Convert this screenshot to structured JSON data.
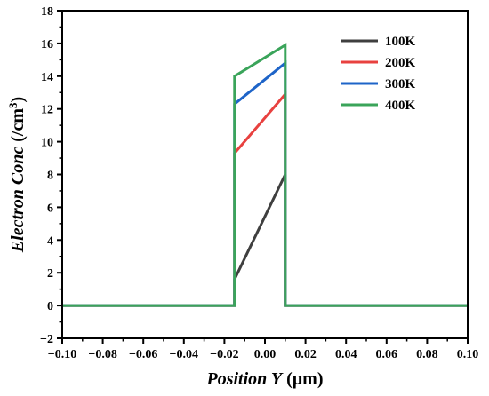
{
  "chart_data": {
    "type": "line",
    "xlabel": {
      "prefix": "Position ",
      "italic_var": "Y",
      "unit": " (μm)"
    },
    "ylabel": {
      "text": "Electron Conc",
      "unit": " (/cm",
      "superscript": "3",
      "close": ")"
    },
    "xlim": [
      -0.1,
      0.1
    ],
    "ylim": [
      -2,
      18
    ],
    "x_ticks": [
      -0.1,
      -0.08,
      -0.06,
      -0.04,
      -0.02,
      0.0,
      0.02,
      0.04,
      0.06,
      0.08,
      0.1
    ],
    "x_tick_labels": [
      "−0.10",
      "−0.08",
      "−0.06",
      "−0.04",
      "−0.02",
      "0.00",
      "0.02",
      "0.04",
      "0.06",
      "0.08",
      "0.10"
    ],
    "y_ticks": [
      -2,
      0,
      2,
      4,
      6,
      8,
      10,
      12,
      14,
      16,
      18
    ],
    "y_tick_labels": [
      "−2",
      "0",
      "2",
      "4",
      "6",
      "8",
      "10",
      "12",
      "14",
      "16",
      "18"
    ],
    "grid": false,
    "legend_position": "top-right",
    "series": [
      {
        "name": "100K",
        "color": "#3f3f3f",
        "points": [
          [
            -0.1,
            0
          ],
          [
            -0.015,
            0
          ],
          [
            -0.015,
            1.6
          ],
          [
            0.01,
            8.0
          ],
          [
            0.01,
            0
          ],
          [
            0.1,
            0
          ]
        ]
      },
      {
        "name": "200K",
        "color": "#e8413f",
        "points": [
          [
            -0.1,
            0
          ],
          [
            -0.015,
            0
          ],
          [
            -0.015,
            9.3
          ],
          [
            0.01,
            12.9
          ],
          [
            0.01,
            0
          ],
          [
            0.1,
            0
          ]
        ]
      },
      {
        "name": "300K",
        "color": "#1e64c8",
        "points": [
          [
            -0.1,
            0
          ],
          [
            -0.015,
            0
          ],
          [
            -0.015,
            12.3
          ],
          [
            0.01,
            14.8
          ],
          [
            0.01,
            0
          ],
          [
            0.1,
            0
          ]
        ]
      },
      {
        "name": "400K",
        "color": "#3aa45a",
        "points": [
          [
            -0.1,
            0
          ],
          [
            -0.015,
            0
          ],
          [
            -0.015,
            14.0
          ],
          [
            0.01,
            15.9
          ],
          [
            0.01,
            0
          ],
          [
            0.1,
            0
          ]
        ]
      }
    ]
  }
}
